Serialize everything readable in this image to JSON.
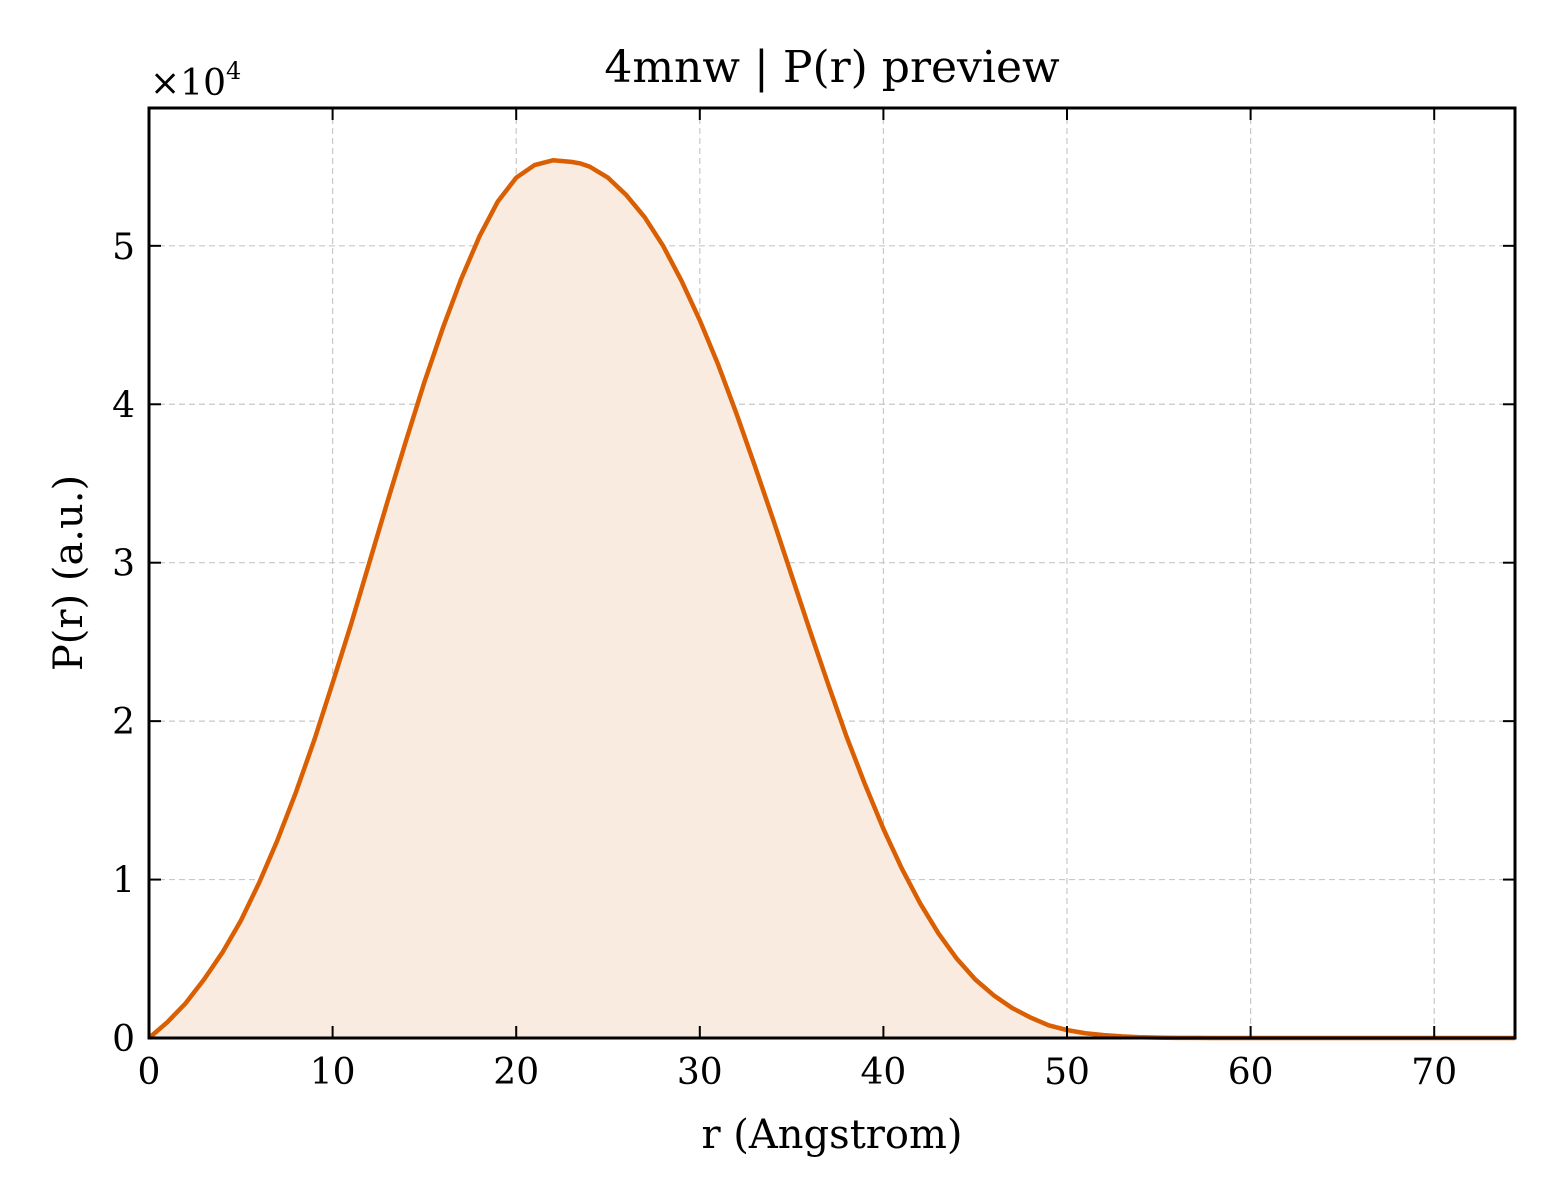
{
  "chart_data": {
    "type": "area",
    "title": "4mnw | P(r) preview",
    "xlabel": "r (Angstrom)",
    "ylabel": "P(r) (a.u.)",
    "y_multiplier": "×10",
    "y_multiplier_exp": "4",
    "xlim": [
      0,
      74.4
    ],
    "ylim": [
      0,
      5.87
    ],
    "x_ticks": [
      0,
      10,
      20,
      30,
      40,
      50,
      60,
      70
    ],
    "y_ticks": [
      0,
      1,
      2,
      3,
      4,
      5
    ],
    "grid": true,
    "colors": {
      "line": "#d95f02",
      "fill": "#f9ebe0"
    },
    "series": [
      {
        "x": [
          0,
          1,
          2,
          3,
          4,
          5,
          6,
          7,
          8,
          9,
          10,
          11,
          12,
          13,
          14,
          15,
          16,
          17,
          18,
          19,
          20,
          21,
          22,
          23,
          23.5,
          24,
          25,
          26,
          27,
          28,
          29,
          30,
          31,
          32,
          33,
          34,
          35,
          36,
          37,
          38,
          39,
          40,
          41,
          42,
          43,
          44,
          45,
          46,
          47,
          48,
          49,
          50,
          51,
          52,
          53,
          54,
          55,
          56,
          57,
          58,
          60,
          65,
          70,
          74.4
        ],
        "y": [
          0,
          0.1,
          0.22,
          0.37,
          0.54,
          0.74,
          0.98,
          1.25,
          1.55,
          1.88,
          2.24,
          2.61,
          3.0,
          3.39,
          3.77,
          4.14,
          4.48,
          4.79,
          5.06,
          5.28,
          5.43,
          5.51,
          5.54,
          5.53,
          5.52,
          5.5,
          5.43,
          5.32,
          5.18,
          5.0,
          4.78,
          4.53,
          4.25,
          3.94,
          3.61,
          3.27,
          2.92,
          2.57,
          2.23,
          1.9,
          1.6,
          1.32,
          1.07,
          0.85,
          0.66,
          0.5,
          0.37,
          0.27,
          0.19,
          0.13,
          0.08,
          0.05,
          0.03,
          0.018,
          0.01,
          0.005,
          0.002,
          0.001,
          0.0005,
          0.0002,
          0.0001,
          0,
          0,
          0
        ]
      }
    ]
  }
}
